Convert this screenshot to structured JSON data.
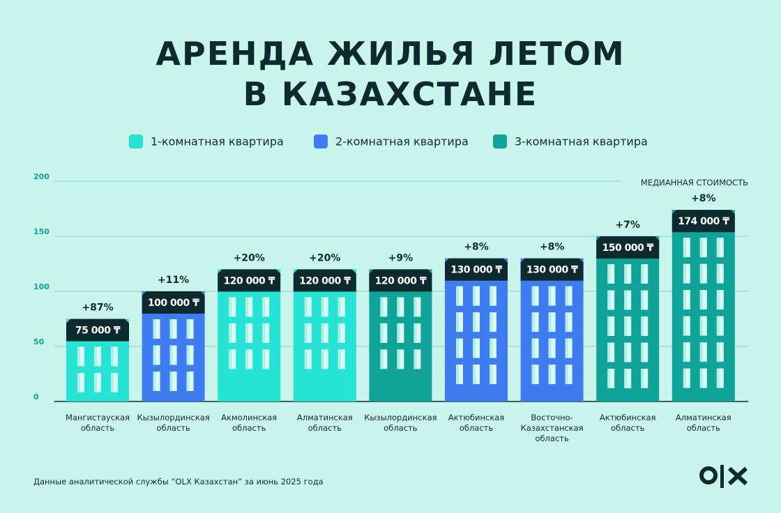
{
  "chart_data": {
    "type": "bar",
    "title": "АРЕНДА ЖИЛЬЯ ЛЕТОМ\nВ КАЗАХСТАНЕ",
    "value_axis_label": "МЕДИАННАЯ СТОИМОСТЬ",
    "source": "Данные аналитической службы “OLX Казахстан” за июнь 2025 года",
    "categories": [
      "Мангистауская\nобласть",
      "Кызылординская\nобласть",
      "Акмолинская\nобласть",
      "Алматинская\nобласть",
      "Кызылординская\nобласть",
      "Актюбинская\nобласть",
      "Восточно-\nКазахстанская\nобласть",
      "Актюбинская\nобласть",
      "Алматинская\nобласть"
    ],
    "series": [
      {
        "name": "1-комнатная квартира",
        "color": "#27e3d3",
        "values": [
          75,
          null,
          120,
          120,
          null,
          null,
          null,
          null,
          null
        ],
        "value_labels": [
          "75 000 ₸",
          null,
          "120 000 ₸",
          "120 000 ₸",
          null,
          null,
          null,
          null,
          null
        ]
      },
      {
        "name": "2-комнатная квартира",
        "color": "#3f7cf0",
        "values": [
          null,
          100,
          null,
          null,
          null,
          130,
          130,
          null,
          null
        ],
        "value_labels": [
          null,
          "100 000 ₸",
          null,
          null,
          null,
          "130 000 ₸",
          "130 000 ₸",
          null,
          null
        ]
      },
      {
        "name": "3-комнатная квартира",
        "color": "#0fa497",
        "values": [
          null,
          null,
          null,
          null,
          120,
          null,
          null,
          150,
          174
        ],
        "value_labels": [
          null,
          null,
          null,
          null,
          "120 000 ₸",
          null,
          null,
          "150 000 ₸",
          "174 000 ₸"
        ]
      }
    ],
    "change_labels": [
      "+87%",
      "+11%",
      "+20%",
      "+20%",
      "+9%",
      "+8%",
      "+8%",
      "+7%",
      "+8%"
    ],
    "ylim": [
      0,
      200
    ],
    "yticks": [
      0,
      50,
      100,
      150,
      200
    ],
    "grid": true,
    "roof_color": "#0d2a2e"
  }
}
